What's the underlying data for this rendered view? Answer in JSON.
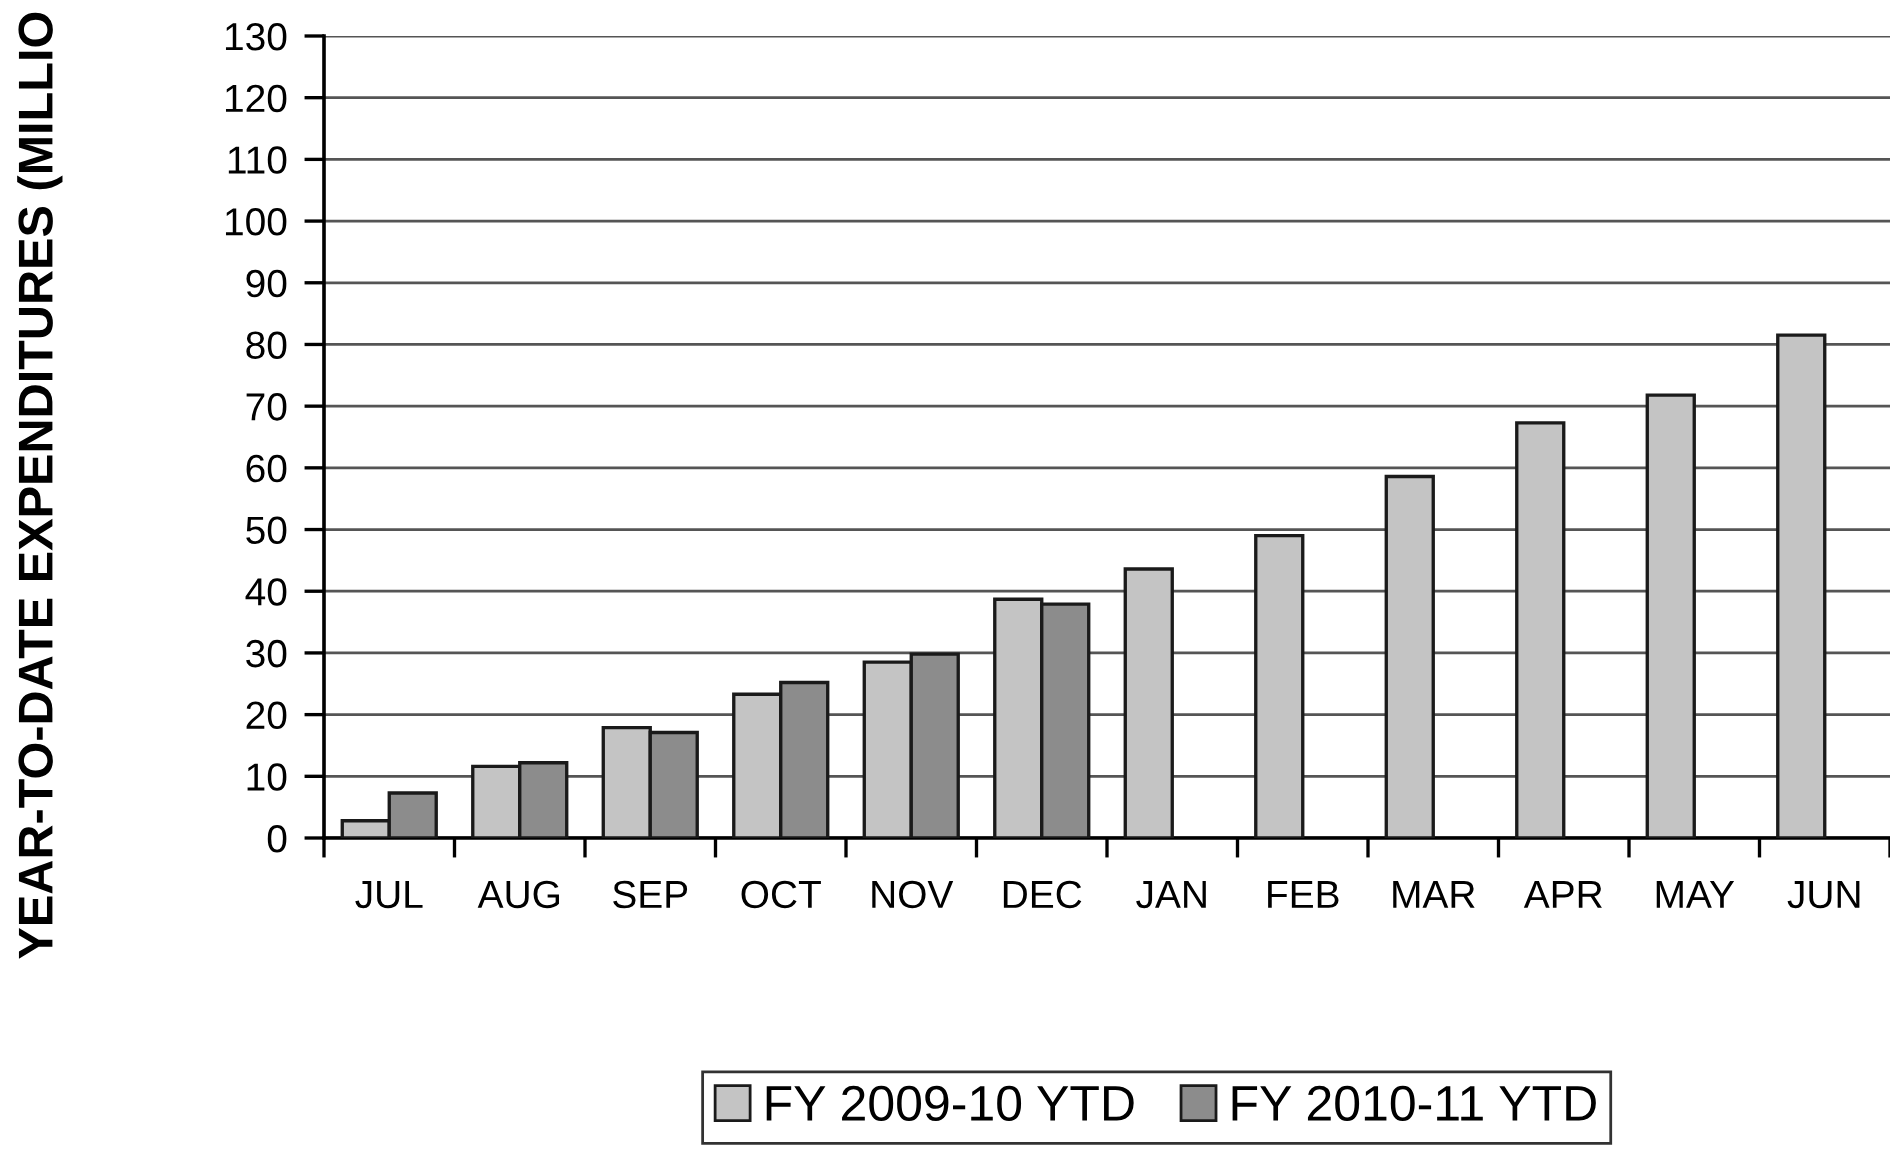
{
  "chart_data": {
    "type": "bar",
    "ylabel": "YEAR-TO-DATE EXPENDITURES (MILLIO",
    "categories": [
      "JUL",
      "AUG",
      "SEP",
      "OCT",
      "NOV",
      "DEC",
      "JAN",
      "FEB",
      "MAR",
      "APR",
      "MAY",
      "JUN"
    ],
    "series": [
      {
        "name": "FY 2009-10 YTD",
        "color": "#c4c4c4",
        "values": [
          2.8,
          11.6,
          17.9,
          23.3,
          28.5,
          38.7,
          43.6,
          49.0,
          58.6,
          67.3,
          71.8,
          81.5
        ]
      },
      {
        "name": "FY 2010-11 YTD",
        "color": "#8c8c8c",
        "values": [
          7.3,
          12.2,
          17.1,
          25.2,
          29.8,
          37.9,
          null,
          null,
          null,
          null,
          null,
          null
        ]
      }
    ],
    "ylim": [
      0,
      130
    ],
    "yticks": [
      0,
      10,
      20,
      30,
      40,
      50,
      60,
      70,
      80,
      90,
      100,
      110,
      120,
      130
    ],
    "grid": "y",
    "legend": "bottom"
  }
}
